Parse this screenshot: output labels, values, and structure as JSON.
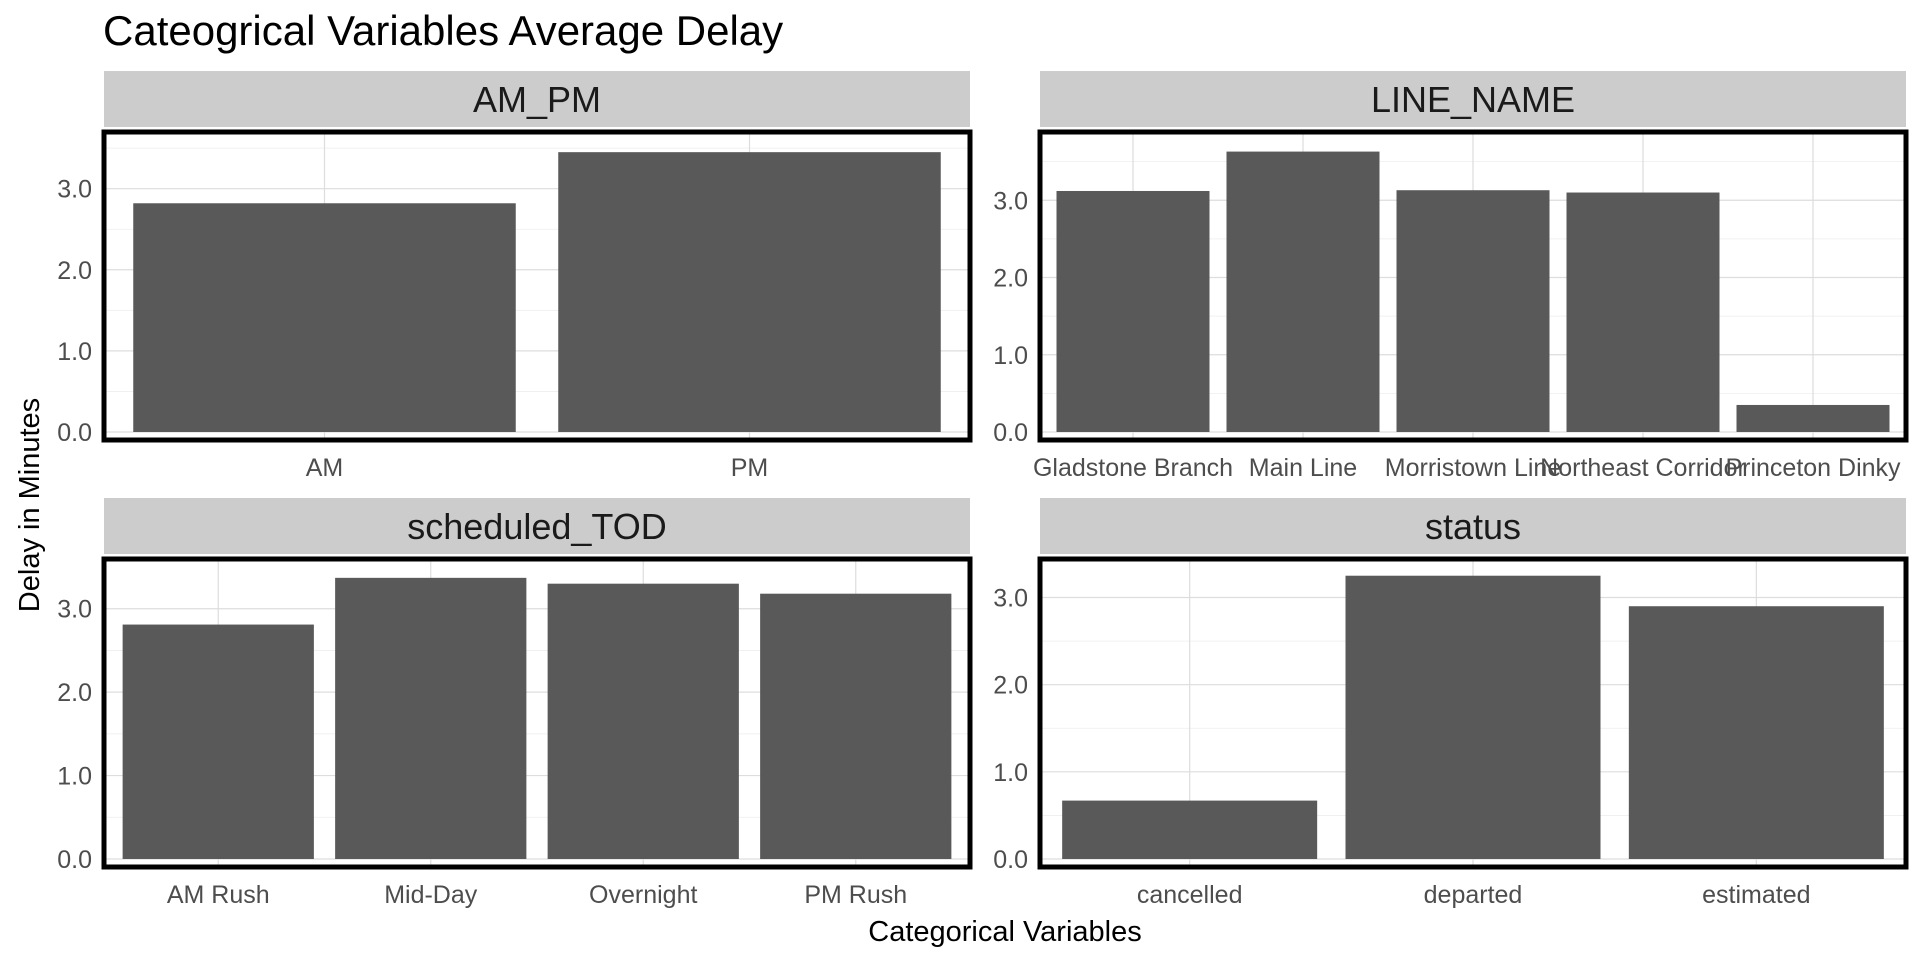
{
  "title": "Cateogrical Variables Average Delay",
  "xlabel": "Categorical Variables",
  "ylabel": "Delay in Minutes",
  "colors": {
    "bar": "#595959",
    "strip": "#cccccc",
    "grid": "#dddddd",
    "frame": "#000000"
  },
  "chart_data": [
    {
      "type": "bar",
      "panel": "AM_PM",
      "categories": [
        "AM",
        "PM"
      ],
      "values": [
        2.82,
        3.45
      ],
      "yticks": [
        "0.0",
        "1.0",
        "2.0",
        "3.0"
      ],
      "ylim": [
        0,
        3.6
      ]
    },
    {
      "type": "bar",
      "panel": "LINE_NAME",
      "categories": [
        "Gladstone Branch",
        "Main Line",
        "Morristown Line",
        "Northeast Corridor",
        "Princeton Dinky"
      ],
      "values": [
        3.12,
        3.63,
        3.13,
        3.1,
        0.35
      ],
      "yticks": [
        "0.0",
        "1.0",
        "2.0",
        "3.0"
      ],
      "ylim": [
        0,
        3.78
      ]
    },
    {
      "type": "bar",
      "panel": "scheduled_TOD",
      "categories": [
        "AM Rush",
        "Mid-Day",
        "Overnight",
        "PM Rush"
      ],
      "values": [
        2.81,
        3.37,
        3.3,
        3.18
      ],
      "yticks": [
        "0.0",
        "1.0",
        "2.0",
        "3.0"
      ],
      "ylim": [
        0,
        3.5
      ]
    },
    {
      "type": "bar",
      "panel": "status",
      "categories": [
        "cancelled",
        "departed",
        "estimated"
      ],
      "values": [
        0.67,
        3.25,
        2.9
      ],
      "yticks": [
        "0.0",
        "1.0",
        "2.0",
        "3.0"
      ],
      "ylim": [
        0,
        3.35
      ]
    }
  ]
}
